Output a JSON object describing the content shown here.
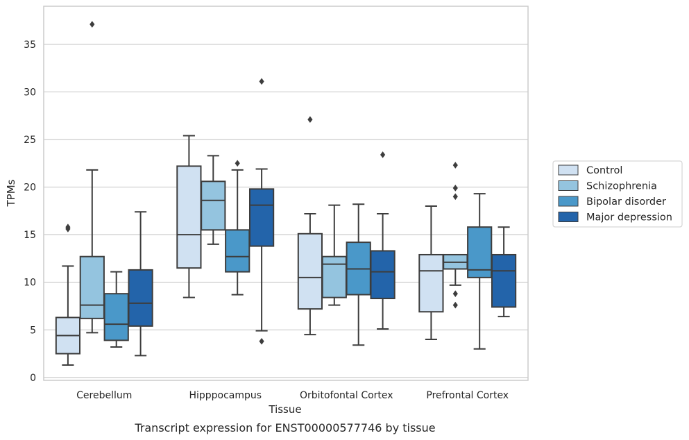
{
  "chart_data": {
    "type": "box",
    "title": "",
    "caption": "Transcript expression for ENST00000577746 by tissue",
    "xlabel": "Tissue",
    "ylabel": "TPMs",
    "ylim": [
      -0.3,
      39.0
    ],
    "yticks": [
      0,
      5,
      10,
      15,
      20,
      25,
      30,
      35
    ],
    "grid": "horizontal",
    "legend_position": "right",
    "categories": [
      "Cerebellum",
      "Hipppocampus",
      "Orbitofontal Cortex",
      "Prefrontal Cortex"
    ],
    "series": [
      {
        "name": "Control",
        "color": "#d0e1f2",
        "boxes": [
          {
            "whisker_low": 1.3,
            "q1": 2.5,
            "median": 4.4,
            "q3": 6.3,
            "whisker_high": 11.7,
            "outliers": [
              15.6,
              15.8
            ]
          },
          {
            "whisker_low": 8.4,
            "q1": 11.5,
            "median": 15.0,
            "q3": 22.2,
            "whisker_high": 25.4,
            "outliers": []
          },
          {
            "whisker_low": 4.5,
            "q1": 7.2,
            "median": 10.5,
            "q3": 15.1,
            "whisker_high": 17.2,
            "outliers": [
              27.1
            ]
          },
          {
            "whisker_low": 4.0,
            "q1": 6.9,
            "median": 11.2,
            "q3": 12.9,
            "whisker_high": 18.0,
            "outliers": []
          }
        ]
      },
      {
        "name": "Schizophrenia",
        "color": "#94c4df",
        "boxes": [
          {
            "whisker_low": 4.7,
            "q1": 6.2,
            "median": 7.6,
            "q3": 12.7,
            "whisker_high": 21.8,
            "outliers": [
              37.1
            ]
          },
          {
            "whisker_low": 14.0,
            "q1": 15.5,
            "median": 18.6,
            "q3": 20.6,
            "whisker_high": 23.3,
            "outliers": []
          },
          {
            "whisker_low": 7.6,
            "q1": 8.4,
            "median": 11.9,
            "q3": 12.7,
            "whisker_high": 18.1,
            "outliers": []
          },
          {
            "whisker_low": 9.7,
            "q1": 11.4,
            "median": 12.1,
            "q3": 12.9,
            "whisker_high": 12.9,
            "outliers": [
              22.3,
              19.9,
              19.0,
              8.8,
              7.6
            ]
          }
        ]
      },
      {
        "name": "Bipolar disorder",
        "color": "#4a98c9",
        "boxes": [
          {
            "whisker_low": 3.2,
            "q1": 3.9,
            "median": 5.6,
            "q3": 8.8,
            "whisker_high": 11.1,
            "outliers": []
          },
          {
            "whisker_low": 8.7,
            "q1": 11.1,
            "median": 12.7,
            "q3": 15.5,
            "whisker_high": 21.8,
            "outliers": [
              22.5
            ]
          },
          {
            "whisker_low": 3.4,
            "q1": 8.7,
            "median": 11.4,
            "q3": 14.2,
            "whisker_high": 18.2,
            "outliers": []
          },
          {
            "whisker_low": 3.0,
            "q1": 10.5,
            "median": 11.3,
            "q3": 15.8,
            "whisker_high": 19.3,
            "outliers": []
          }
        ]
      },
      {
        "name": "Major depression",
        "color": "#2364aa",
        "boxes": [
          {
            "whisker_low": 2.3,
            "q1": 5.4,
            "median": 7.8,
            "q3": 11.3,
            "whisker_high": 17.4,
            "outliers": []
          },
          {
            "whisker_low": 4.9,
            "q1": 13.8,
            "median": 18.1,
            "q3": 19.8,
            "whisker_high": 21.9,
            "outliers": [
              31.1,
              3.8
            ]
          },
          {
            "whisker_low": 5.1,
            "q1": 8.3,
            "median": 11.1,
            "q3": 13.3,
            "whisker_high": 17.2,
            "outliers": [
              23.4
            ]
          },
          {
            "whisker_low": 6.4,
            "q1": 7.4,
            "median": 11.2,
            "q3": 12.9,
            "whisker_high": 15.8,
            "outliers": []
          }
        ]
      }
    ]
  }
}
